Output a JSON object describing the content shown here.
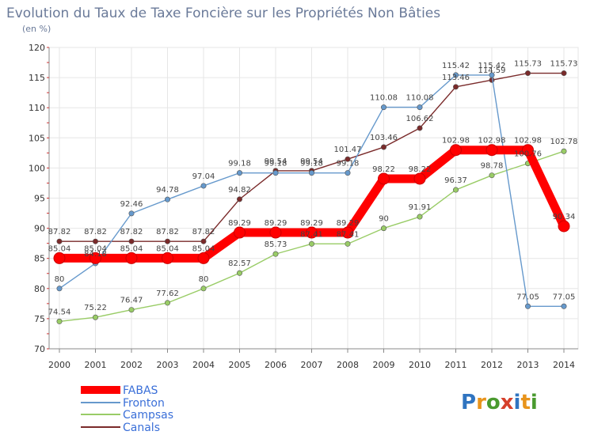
{
  "chart_data": {
    "type": "line",
    "title": "Evolution du Taux de Taxe Foncière sur les Propriétés Non Bâties",
    "subtitle": "(en %)",
    "x": [
      "2000",
      "2001",
      "2002",
      "2003",
      "2004",
      "2005",
      "2006",
      "2007",
      "2008",
      "2009",
      "2010",
      "2011",
      "2012",
      "2013",
      "2014"
    ],
    "ylim": [
      70,
      120
    ],
    "yticks": [
      "70",
      "75",
      "80",
      "85",
      "90",
      "95",
      "100",
      "105",
      "110",
      "115",
      "120"
    ],
    "grid": true,
    "legend_position": "bottom-left",
    "series": [
      {
        "name": "FABAS",
        "color": "#ff0000",
        "values": [
          85.04,
          85.04,
          85.04,
          85.04,
          85.04,
          89.29,
          89.29,
          89.29,
          89.29,
          98.22,
          98.22,
          102.98,
          102.98,
          102.98,
          90.34
        ],
        "labels": [
          "85.04",
          "85.04",
          "85.04",
          "85.04",
          "85.04",
          "89.29",
          "89.29",
          "89.29",
          "89.29",
          "98.22",
          "98.22",
          "102.98",
          "102.98",
          "102.98",
          "90.34"
        ]
      },
      {
        "name": "Fronton",
        "color": "#6699cc",
        "values": [
          80,
          84.18,
          92.46,
          94.78,
          97.04,
          99.18,
          99.18,
          99.18,
          99.18,
          110.08,
          110.08,
          115.42,
          115.42,
          77.05,
          77.05
        ],
        "labels": [
          "80",
          "84.18",
          "92.46",
          "94.78",
          "97.04",
          "99.18",
          "99.18",
          "99.18",
          "99.18",
          "110.08",
          "110.08",
          "115.42",
          "115.42",
          "77.05",
          "77.05"
        ]
      },
      {
        "name": "Campsas",
        "color": "#99cc66",
        "values": [
          74.54,
          75.22,
          76.47,
          77.62,
          80,
          82.57,
          85.73,
          87.41,
          87.41,
          90,
          91.91,
          96.37,
          98.78,
          100.76,
          102.78
        ],
        "labels": [
          "74.54",
          "75.22",
          "76.47",
          "77.62",
          "80",
          "82.57",
          "85.73",
          "87.41",
          "87.41",
          "90",
          "91.91",
          "96.37",
          "98.78",
          "100.76",
          "102.78"
        ]
      },
      {
        "name": "Canals",
        "color": "#7a2a2a",
        "values": [
          87.82,
          87.82,
          87.82,
          87.82,
          87.82,
          94.82,
          99.54,
          99.54,
          101.47,
          103.46,
          106.62,
          113.46,
          114.59,
          115.73,
          115.73
        ],
        "labels": [
          "87.82",
          "87.82",
          "87.82",
          "87.82",
          "87.82",
          "94.82",
          "99.54",
          "99.54",
          "101.47",
          "103.46",
          "106.62",
          "113.46",
          "114.59",
          "115.73",
          "115.73"
        ]
      }
    ]
  },
  "logo": {
    "text": "Proxiti",
    "letters": [
      "P",
      "r",
      "o",
      "x",
      "i",
      "t",
      "i"
    ],
    "colors": [
      "#2f74c0",
      "#e8941c",
      "#4a9a2f",
      "#d6402b",
      "#2f74c0",
      "#e8941c",
      "#4a9a2f"
    ]
  }
}
